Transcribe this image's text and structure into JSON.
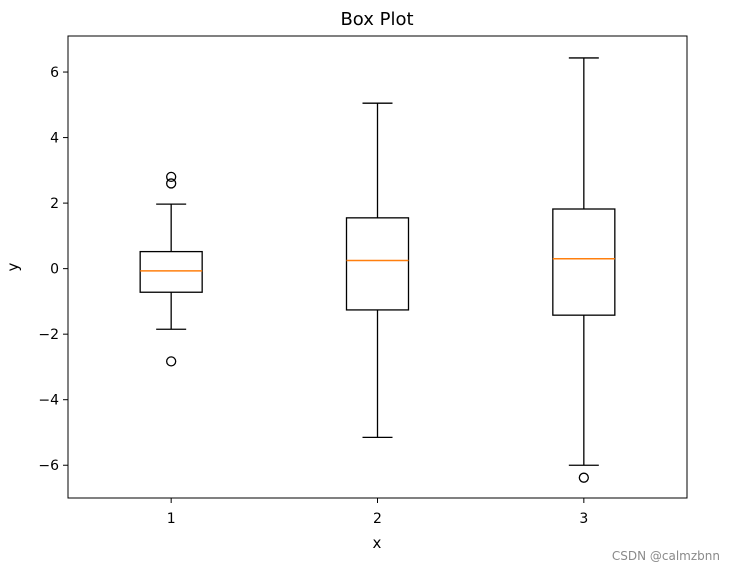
{
  "chart_data": {
    "type": "box",
    "title": "Box Plot",
    "xlabel": "x",
    "ylabel": "y",
    "categories": [
      "1",
      "2",
      "3"
    ],
    "xlim": [
      0.5,
      3.5
    ],
    "ylim": [
      -7,
      7.1
    ],
    "yticks": [
      -6,
      -4,
      -2,
      0,
      2,
      4,
      6
    ],
    "y_tick_labels": [
      "−6",
      "−4",
      "−2",
      "0",
      "2",
      "4",
      "6"
    ],
    "boxes": [
      {
        "category": "1",
        "whisker_low": -1.85,
        "q1": -0.72,
        "median": -0.07,
        "q3": 0.52,
        "whisker_high": 1.97,
        "outliers": [
          2.8,
          2.6,
          -2.83
        ]
      },
      {
        "category": "2",
        "whisker_low": -5.15,
        "q1": -1.26,
        "median": 0.25,
        "q3": 1.55,
        "whisker_high": 5.05,
        "outliers": []
      },
      {
        "category": "3",
        "whisker_low": -6.0,
        "q1": -1.42,
        "median": 0.3,
        "q3": 1.82,
        "whisker_high": 6.43,
        "outliers": [
          -6.38
        ]
      }
    ],
    "grid": false,
    "colors": {
      "box": "#000000",
      "median": "#ff7f0e",
      "axes": "#000000"
    }
  },
  "watermark": "CSDN @calmzbnn"
}
